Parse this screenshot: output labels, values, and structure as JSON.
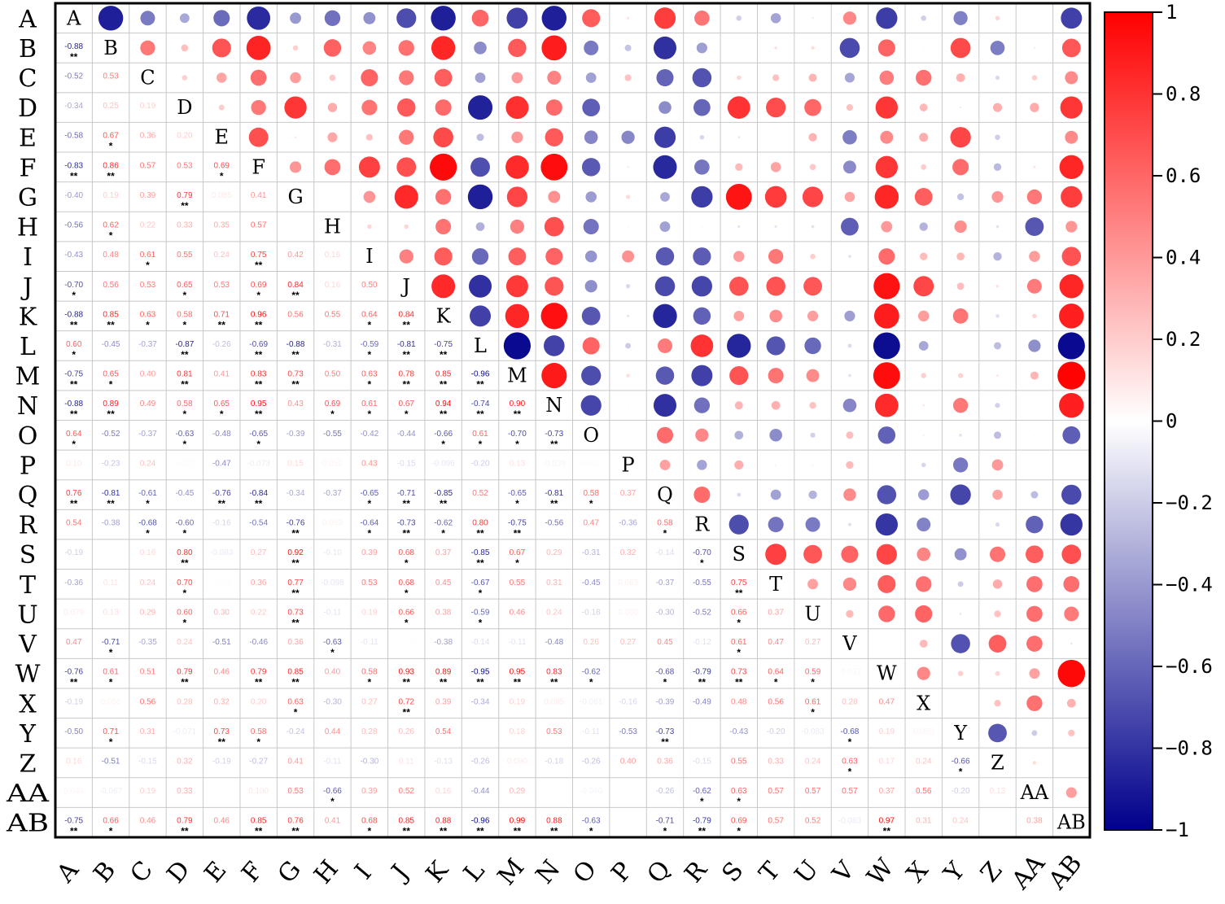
{
  "chart_data": {
    "type": "heatmap",
    "variables": [
      "A",
      "B",
      "C",
      "D",
      "E",
      "F",
      "G",
      "H",
      "I",
      "J",
      "K",
      "L",
      "M",
      "N",
      "O",
      "P",
      "Q",
      "R",
      "S",
      "T",
      "U",
      "V",
      "W",
      "X",
      "Y",
      "Z",
      "AA",
      "AB"
    ],
    "lower_triangle": [
      [],
      [
        "-0.88"
      ],
      [
        "-0.52",
        "0.53"
      ],
      [
        "-0.34",
        "0.25",
        "0.19"
      ],
      [
        "-0.58",
        "0.67",
        "0.36",
        "0.20"
      ],
      [
        "-0.83",
        "0.86",
        "0.57",
        "0.53",
        "0.69"
      ],
      [
        "-0.40",
        "0.19",
        "0.39",
        "0.79",
        "0.085",
        "0.41"
      ],
      [
        "-0.56",
        "0.62",
        "0.22",
        "0.33",
        "0.35",
        "0.57",
        "0.003"
      ],
      [
        "-0.43",
        "0.48",
        "0.61",
        "0.55",
        "0.24",
        "0.75",
        "0.42",
        "0.16"
      ],
      [
        "-0.70",
        "0.56",
        "0.53",
        "0.65",
        "0.53",
        "0.69",
        "0.84",
        "0.16",
        "0.50"
      ],
      [
        "-0.88",
        "0.85",
        "0.63",
        "0.58",
        "0.71",
        "0.96",
        "0.56",
        "0.55",
        "0.64",
        "0.84"
      ],
      [
        "0.60",
        "-0.45",
        "-0.37",
        "-0.87",
        "-0.26",
        "-0.69",
        "-0.88",
        "-0.31",
        "-0.59",
        "-0.81",
        "-0.75"
      ],
      [
        "-0.75",
        "0.65",
        "0.40",
        "0.81",
        "0.41",
        "0.83",
        "0.73",
        "0.50",
        "0.63",
        "0.78",
        "0.85",
        "-0.96"
      ],
      [
        "-0.88",
        "0.89",
        "0.49",
        "0.58",
        "0.65",
        "0.95",
        "0.43",
        "0.69",
        "0.61",
        "0.67",
        "0.94",
        "-0.74",
        "0.90"
      ],
      [
        "0.64",
        "-0.52",
        "-0.37",
        "-0.63",
        "-0.48",
        "-0.65",
        "-0.39",
        "-0.55",
        "-0.42",
        "-0.44",
        "-0.66",
        "0.61",
        "-0.70",
        "-0.73"
      ],
      [
        "0.10",
        "-0.23",
        "0.24",
        "0.022",
        "-0.47",
        "-0.073",
        "0.15",
        "0.052",
        "0.43",
        "-0.15",
        "-0.096",
        "-0.20",
        "0.13",
        "-0.039",
        "0.022"
      ],
      [
        "0.76",
        "-0.81",
        "-0.61",
        "-0.45",
        "-0.76",
        "-0.84",
        "-0.34",
        "-0.37",
        "-0.65",
        "-0.71",
        "-0.85",
        "0.52",
        "-0.65",
        "-0.81",
        "0.58",
        "0.37"
      ],
      [
        "0.54",
        "-0.38",
        "-0.68",
        "-0.60",
        "-0.16",
        "-0.54",
        "-0.76",
        "0.053",
        "-0.64",
        "-0.73",
        "-0.62",
        "0.80",
        "-0.75",
        "-0.56",
        "0.47",
        "-0.36",
        "0.58"
      ],
      [
        "-0.19",
        "0.014",
        "0.16",
        "0.80",
        "-0.083",
        "0.27",
        "0.92",
        "-0.10",
        "0.39",
        "0.68",
        "0.37",
        "-0.85",
        "0.67",
        "0.29",
        "-0.31",
        "0.32",
        "-0.14",
        "-0.70"
      ],
      [
        "-0.36",
        "0.11",
        "0.24",
        "0.70",
        "0.016",
        "0.36",
        "0.77",
        "-0.098",
        "0.53",
        "0.68",
        "0.45",
        "-0.67",
        "0.55",
        "0.31",
        "-0.45",
        "0.063",
        "-0.37",
        "-0.55",
        "0.75"
      ],
      [
        "0.079",
        "0.13",
        "0.29",
        "0.60",
        "0.30",
        "0.22",
        "0.73",
        "-0.11",
        "0.19",
        "0.66",
        "0.38",
        "-0.59",
        "0.46",
        "0.24",
        "-0.18",
        "0.060",
        "-0.30",
        "-0.52",
        "0.66",
        "0.37"
      ],
      [
        "0.47",
        "-0.71",
        "-0.35",
        "0.24",
        "-0.51",
        "-0.46",
        "0.36",
        "-0.63",
        "-0.11",
        "0.008",
        "-0.38",
        "-0.14",
        "-0.11",
        "-0.48",
        "0.26",
        "0.27",
        "0.45",
        "-0.12",
        "0.61",
        "0.47",
        "0.27"
      ],
      [
        "-0.76",
        "0.61",
        "0.51",
        "0.79",
        "0.46",
        "0.79",
        "0.85",
        "0.40",
        "0.58",
        "0.93",
        "0.89",
        "-0.95",
        "0.95",
        "0.83",
        "-0.62",
        "0.008",
        "-0.68",
        "-0.79",
        "0.73",
        "0.64",
        "0.59",
        "-0.032"
      ],
      [
        "-0.19",
        "0.050",
        "0.56",
        "0.28",
        "0.32",
        "0.20",
        "0.63",
        "-0.30",
        "0.27",
        "0.72",
        "0.39",
        "-0.34",
        "0.19",
        "0.085",
        "-0.061",
        "-0.16",
        "-0.39",
        "-0.49",
        "0.48",
        "0.56",
        "0.61",
        "0.28",
        "0.47"
      ],
      [
        "-0.50",
        "0.71",
        "0.31",
        "-0.071",
        "0.73",
        "0.58",
        "-0.24",
        "0.44",
        "0.28",
        "0.26",
        "0.54",
        "0.001",
        "0.18",
        "0.53",
        "-0.11",
        "-0.53",
        "-0.73",
        "0.001",
        "-0.43",
        "-0.20",
        "-0.083",
        "-0.68",
        "0.19",
        "0.050"
      ],
      [
        "0.16",
        "-0.51",
        "-0.15",
        "0.32",
        "-0.19",
        "-0.27",
        "0.41",
        "-0.11",
        "-0.30",
        "0.11",
        "-0.13",
        "-0.26",
        "0.090",
        "-0.18",
        "-0.26",
        "0.40",
        "0.36",
        "-0.15",
        "0.55",
        "0.33",
        "0.24",
        "0.63",
        "0.17",
        "0.24",
        "-0.66"
      ],
      [
        "0.046",
        "-0.067",
        "0.19",
        "0.33",
        "0.001",
        "0.100",
        "0.53",
        "-0.66",
        "0.39",
        "0.52",
        "0.16",
        "-0.44",
        "0.29",
        "0.001",
        "-0.040",
        "0.001",
        "-0.26",
        "-0.62",
        "0.63",
        "0.57",
        "0.57",
        "0.57",
        "0.37",
        "0.56",
        "-0.20",
        "0.13"
      ],
      [
        "-0.75",
        "0.66",
        "0.46",
        "0.79",
        "0.46",
        "0.85",
        "0.76",
        "0.41",
        "0.68",
        "0.85",
        "0.88",
        "-0.96",
        "0.99",
        "0.88",
        "-0.63",
        "0.003",
        "-0.71",
        "-0.79",
        "0.69",
        "0.57",
        "0.52",
        "-0.083",
        "0.97",
        "0.31",
        "0.24",
        "0.014",
        "0.38"
      ]
    ],
    "significance": [
      [],
      [
        "**"
      ],
      [
        "",
        ""
      ],
      [
        "",
        "",
        ""
      ],
      [
        "",
        "*",
        "",
        ""
      ],
      [
        "**",
        "**",
        "",
        "",
        "*"
      ],
      [
        "",
        "",
        "",
        "**",
        "",
        ""
      ],
      [
        "",
        "*",
        "",
        "",
        "",
        "",
        ""
      ],
      [
        "",
        "",
        "*",
        "",
        "",
        "**",
        "",
        ""
      ],
      [
        "*",
        "",
        "",
        "*",
        "",
        "*",
        "**",
        "",
        ""
      ],
      [
        "**",
        "**",
        "*",
        "*",
        "**",
        "**",
        "",
        "",
        "*",
        "**"
      ],
      [
        "*",
        "",
        "",
        "**",
        "",
        "**",
        "**",
        "",
        "*",
        "**",
        "**"
      ],
      [
        "**",
        "*",
        "",
        "**",
        "",
        "**",
        "**",
        "",
        "*",
        "**",
        "**",
        "**"
      ],
      [
        "**",
        "**",
        "",
        "*",
        "*",
        "**",
        "",
        "*",
        "*",
        "*",
        "**",
        "**",
        "**"
      ],
      [
        "*",
        "",
        "",
        "*",
        "",
        "*",
        "",
        "",
        "",
        "",
        "*",
        "*",
        "*",
        "**"
      ],
      [
        "",
        "",
        "",
        "",
        "",
        "",
        "",
        "",
        "",
        "",
        "",
        "",
        "",
        "",
        ""
      ],
      [
        "**",
        "**",
        "*",
        "",
        "**",
        "**",
        "",
        "",
        "*",
        "**",
        "**",
        "",
        "*",
        "**",
        "*",
        ""
      ],
      [
        "",
        "",
        "*",
        "*",
        "",
        "",
        "**",
        "",
        "*",
        "**",
        "*",
        "**",
        "**",
        "",
        "",
        "",
        "*"
      ],
      [
        "",
        "",
        "",
        "**",
        "",
        "",
        "**",
        "",
        "",
        "*",
        "",
        "**",
        "*",
        "",
        "",
        "",
        "",
        "*"
      ],
      [
        "",
        "",
        "",
        "*",
        "",
        "",
        "**",
        "",
        "",
        "*",
        "",
        "*",
        "",
        "",
        "",
        "",
        "",
        "",
        "**"
      ],
      [
        "",
        "",
        "",
        "*",
        "",
        "",
        "**",
        "",
        "",
        "*",
        "",
        "*",
        "",
        "",
        "",
        "",
        "",
        "",
        "*",
        ""
      ],
      [
        "",
        "*",
        "",
        "",
        "",
        "",
        "",
        "*",
        "",
        "",
        "",
        "",
        "",
        "",
        "",
        "",
        "",
        "",
        "*",
        "",
        ""
      ],
      [
        "**",
        "*",
        "",
        "**",
        "",
        "**",
        "**",
        "",
        "*",
        "**",
        "**",
        "**",
        "**",
        "**",
        "*",
        "",
        "*",
        "**",
        "**",
        "*",
        "*",
        ""
      ],
      [
        "",
        "",
        "",
        "",
        "",
        "",
        "*",
        "",
        "",
        "**",
        "",
        "",
        "",
        "",
        "",
        "",
        "",
        "",
        "",
        "",
        "*",
        "",
        ""
      ],
      [
        "",
        "*",
        "",
        "",
        "**",
        "*",
        "",
        "",
        "",
        "",
        "",
        "",
        "",
        "",
        "",
        "",
        "**",
        "",
        "",
        "",
        "",
        "*",
        "",
        ""
      ],
      [
        "",
        "",
        "",
        "",
        "",
        "",
        "",
        "",
        "",
        "",
        "",
        "",
        "",
        "",
        "",
        "",
        "",
        "",
        "",
        "",
        "",
        "*",
        "",
        "",
        "*"
      ],
      [
        "",
        "",
        "",
        "",
        "",
        "",
        "",
        "*",
        "",
        "",
        "",
        "",
        "",
        "",
        "",
        "",
        "",
        "*",
        "*",
        "",
        "",
        "",
        "",
        "",
        "",
        ""
      ],
      [
        "**",
        "*",
        "",
        "**",
        "",
        "**",
        "**",
        "",
        "*",
        "**",
        "**",
        "**",
        "**",
        "**",
        "*",
        "",
        "*",
        "**",
        "*",
        "",
        "",
        "",
        "**",
        "",
        "",
        "",
        ""
      ]
    ],
    "colorbar_ticks": [
      "1",
      "0.8",
      "0.6",
      "0.4",
      "0.2",
      "0",
      "−0.2",
      "−0.4",
      "−0.6",
      "−0.8",
      "−1"
    ],
    "colorbar_range": [
      -1,
      1
    ],
    "colors": {
      "positive": "#ff0000",
      "zero": "#ffffff",
      "negative": "#00008b"
    },
    "legend_placement": "right"
  }
}
